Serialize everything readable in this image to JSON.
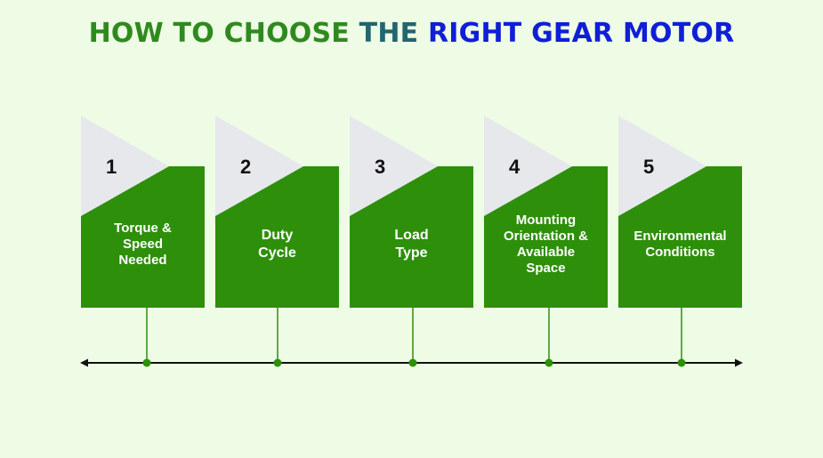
{
  "title": {
    "part1": "HOW TO CHOOSE",
    "part2": "THE",
    "part3": "RIGHT GEAR MOTOR"
  },
  "colors": {
    "background": "#eefce6",
    "card_green": "#2e8f0a",
    "tab_gray": "#e6e8ec",
    "connector": "#2e8f0a",
    "timeline": "#111111"
  },
  "steps": [
    {
      "number": "1",
      "label": "Torque &\nSpeed\nNeeded"
    },
    {
      "number": "2",
      "label": "Duty\nCycle"
    },
    {
      "number": "3",
      "label": "Load\nType"
    },
    {
      "number": "4",
      "label": "Mounting\nOrientation &\nAvailable\nSpace"
    },
    {
      "number": "5",
      "label": "Environmental\nConditions"
    }
  ]
}
